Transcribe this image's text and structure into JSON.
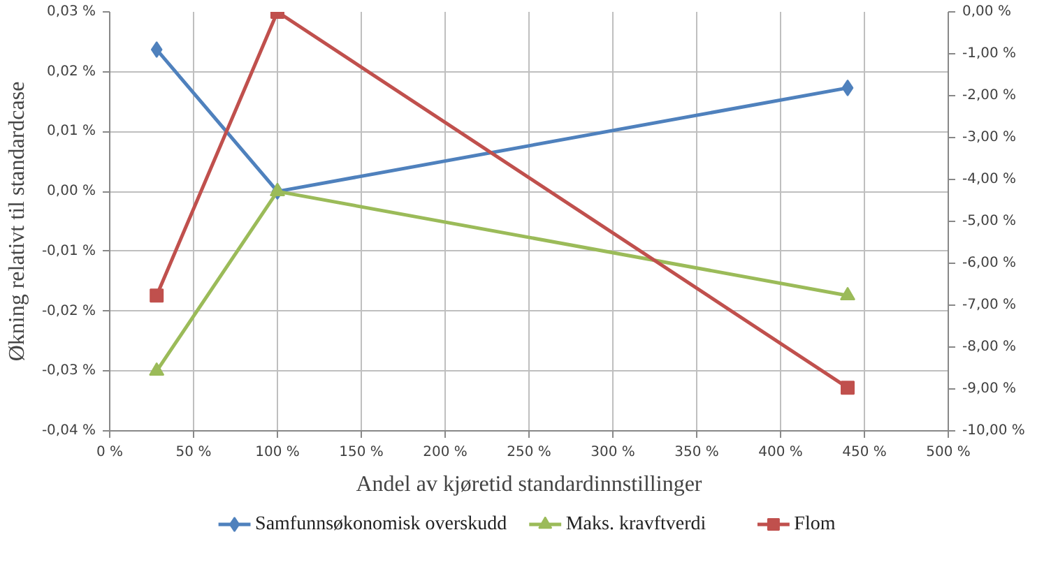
{
  "chart_data": {
    "type": "line",
    "xlabel": "Andel av kjøretid standardinnstillinger",
    "ylabel": "Økning relativt til standardcase",
    "xlim": [
      0,
      500
    ],
    "xticks": [
      {
        "value": 0,
        "label": "0 %"
      },
      {
        "value": 50,
        "label": "50 %"
      },
      {
        "value": 100,
        "label": "100 %"
      },
      {
        "value": 150,
        "label": "150 %"
      },
      {
        "value": 200,
        "label": "200 %"
      },
      {
        "value": 250,
        "label": "250 %"
      },
      {
        "value": 300,
        "label": "300 %"
      },
      {
        "value": 350,
        "label": "350 %"
      },
      {
        "value": 400,
        "label": "400 %"
      },
      {
        "value": 450,
        "label": "450 %"
      },
      {
        "value": 500,
        "label": "500 %"
      }
    ],
    "ylim": [
      -0.04,
      0.03
    ],
    "yticks": [
      {
        "value": -0.04,
        "label": "-0,04 %"
      },
      {
        "value": -0.03,
        "label": "-0,03 %"
      },
      {
        "value": -0.02,
        "label": "-0,02 %"
      },
      {
        "value": -0.01,
        "label": "-0,01 %"
      },
      {
        "value": 0,
        "label": "0,00 %"
      },
      {
        "value": 0.01,
        "label": "0,01 %"
      },
      {
        "value": 0.02,
        "label": "0,02 %"
      },
      {
        "value": 0.03,
        "label": "0,03 %"
      }
    ],
    "y2lim": [
      -10,
      0
    ],
    "y2ticks": [
      {
        "value": -10,
        "label": "-10,00 %"
      },
      {
        "value": -9,
        "label": "-9,00 %"
      },
      {
        "value": -8,
        "label": "-8,00 %"
      },
      {
        "value": -7,
        "label": "-7,00 %"
      },
      {
        "value": -6,
        "label": "-6,00 %"
      },
      {
        "value": -5,
        "label": "-5,00 %"
      },
      {
        "value": -4,
        "label": "-4,00 %"
      },
      {
        "value": -3,
        "label": "-3,00 %"
      },
      {
        "value": -2,
        "label": "-2,00 %"
      },
      {
        "value": -1,
        "label": "-1,00 %"
      },
      {
        "value": 0,
        "label": "0,00 %"
      }
    ],
    "x": [
      28,
      100,
      440
    ],
    "grid": true,
    "legend": "bottom",
    "series": [
      {
        "name": "Samfunnsøkonomisk overskudd",
        "color": "#4f81bd",
        "marker": "diamond",
        "values": [
          0.0237,
          0,
          0.0173
        ]
      },
      {
        "name": "Maks. kravftverdi",
        "color": "#9bbb59",
        "marker": "triangle",
        "values": [
          -0.03,
          0,
          -0.0174
        ]
      },
      {
        "name": "Flom",
        "color": "#c0504d",
        "marker": "square",
        "axis": "y2",
        "values": [
          -6.77,
          0,
          -8.97
        ]
      }
    ]
  }
}
